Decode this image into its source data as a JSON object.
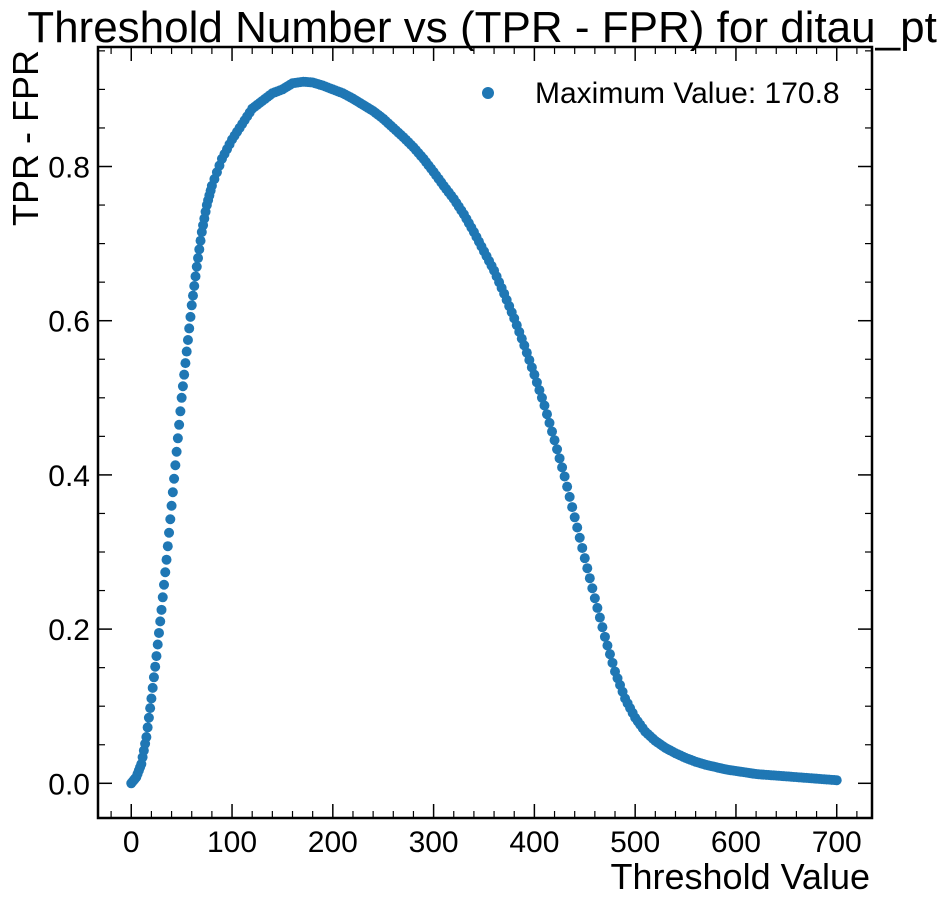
{
  "chart_data": {
    "type": "scatter",
    "title": "Threshold Number vs (TPR - FPR) for ditau_pt",
    "xlabel": "Threshold Value",
    "ylabel": "TPR - FPR",
    "xlim": [
      -33,
      735
    ],
    "ylim": [
      -0.045,
      0.955
    ],
    "xticks": [
      0,
      100,
      200,
      300,
      400,
      500,
      600,
      700
    ],
    "xtick_labels": [
      "0",
      "100",
      "200",
      "300",
      "400",
      "500",
      "600",
      "700"
    ],
    "yticks": [
      0.0,
      0.2,
      0.4,
      0.6,
      0.8
    ],
    "ytick_labels": [
      "0.0",
      "0.2",
      "0.4",
      "0.6",
      "0.8"
    ],
    "grid": false,
    "legend_position": "top-right",
    "series": [
      {
        "name": "Maximum Value: 170.8",
        "color": "#1f77b4",
        "marker": "circle",
        "points": [
          [
            0,
            0.0
          ],
          [
            5,
            0.008
          ],
          [
            10,
            0.025
          ],
          [
            15,
            0.06
          ],
          [
            20,
            0.11
          ],
          [
            25,
            0.165
          ],
          [
            30,
            0.225
          ],
          [
            35,
            0.29
          ],
          [
            40,
            0.36
          ],
          [
            45,
            0.43
          ],
          [
            50,
            0.5
          ],
          [
            55,
            0.56
          ],
          [
            60,
            0.62
          ],
          [
            65,
            0.67
          ],
          [
            70,
            0.715
          ],
          [
            75,
            0.75
          ],
          [
            80,
            0.775
          ],
          [
            90,
            0.81
          ],
          [
            100,
            0.835
          ],
          [
            110,
            0.855
          ],
          [
            120,
            0.875
          ],
          [
            130,
            0.885
          ],
          [
            140,
            0.895
          ],
          [
            150,
            0.9
          ],
          [
            160,
            0.908
          ],
          [
            170.8,
            0.91
          ],
          [
            180,
            0.909
          ],
          [
            190,
            0.905
          ],
          [
            200,
            0.9
          ],
          [
            210,
            0.895
          ],
          [
            220,
            0.888
          ],
          [
            230,
            0.88
          ],
          [
            240,
            0.872
          ],
          [
            250,
            0.862
          ],
          [
            260,
            0.85
          ],
          [
            270,
            0.838
          ],
          [
            280,
            0.825
          ],
          [
            290,
            0.81
          ],
          [
            300,
            0.793
          ],
          [
            310,
            0.775
          ],
          [
            320,
            0.758
          ],
          [
            330,
            0.738
          ],
          [
            340,
            0.715
          ],
          [
            350,
            0.69
          ],
          [
            360,
            0.665
          ],
          [
            370,
            0.635
          ],
          [
            380,
            0.603
          ],
          [
            390,
            0.568
          ],
          [
            400,
            0.53
          ],
          [
            410,
            0.49
          ],
          [
            420,
            0.445
          ],
          [
            430,
            0.398
          ],
          [
            440,
            0.345
          ],
          [
            450,
            0.292
          ],
          [
            460,
            0.24
          ],
          [
            470,
            0.19
          ],
          [
            480,
            0.145
          ],
          [
            490,
            0.11
          ],
          [
            500,
            0.085
          ],
          [
            510,
            0.067
          ],
          [
            520,
            0.055
          ],
          [
            530,
            0.046
          ],
          [
            540,
            0.039
          ],
          [
            550,
            0.033
          ],
          [
            560,
            0.028
          ],
          [
            570,
            0.024
          ],
          [
            580,
            0.021
          ],
          [
            590,
            0.018
          ],
          [
            600,
            0.016
          ],
          [
            610,
            0.014
          ],
          [
            620,
            0.012
          ],
          [
            630,
            0.011
          ],
          [
            640,
            0.01
          ],
          [
            650,
            0.009
          ],
          [
            660,
            0.008
          ],
          [
            670,
            0.007
          ],
          [
            680,
            0.006
          ],
          [
            690,
            0.005
          ],
          [
            700,
            0.004
          ]
        ]
      }
    ]
  }
}
